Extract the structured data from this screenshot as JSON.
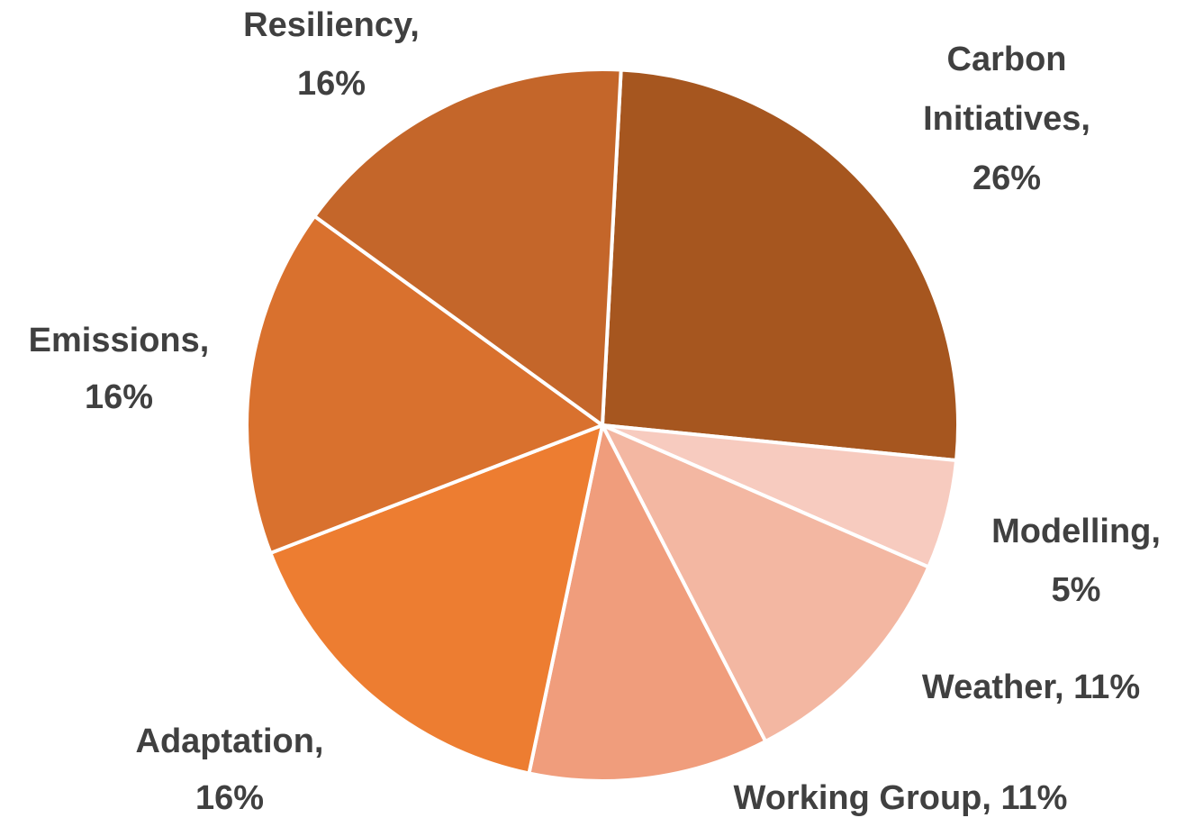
{
  "chart_data": {
    "type": "pie",
    "values": [
      26,
      5,
      11,
      11,
      16,
      16,
      16
    ],
    "value_labels": [
      [
        "Carbon",
        "Initiatives,",
        "26%"
      ],
      [
        "Modelling,",
        "5%"
      ],
      [
        "Weather, 11%"
      ],
      [
        "Working Group, 11%"
      ],
      [
        "Adaptation,",
        "16%"
      ],
      [
        "Emissions,",
        "16%"
      ],
      [
        "Resiliency,",
        "16%"
      ]
    ],
    "colors": [
      "#a6561f",
      "#f7cbbf",
      "#f3b7a2",
      "#f09d7c",
      "#ed7d31",
      "#d9712e",
      "#c4662a"
    ]
  }
}
